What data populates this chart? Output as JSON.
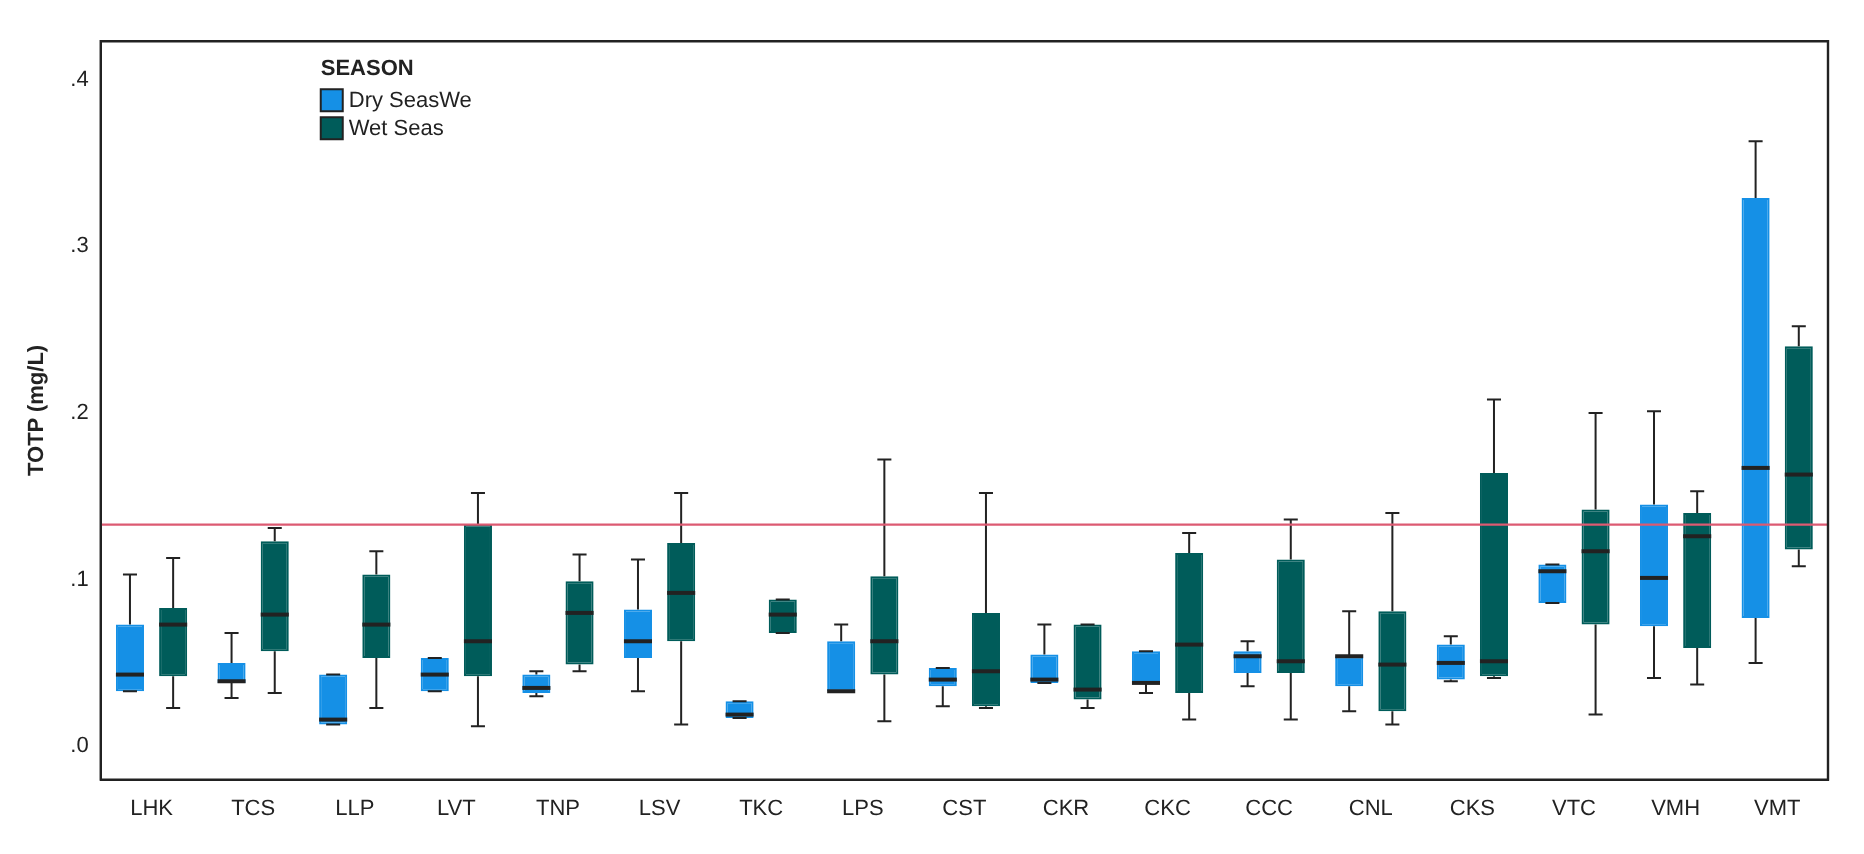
{
  "chart_data": {
    "type": "box",
    "ylabel": "TOTP (mg/L)",
    "legend_title": "SEASON",
    "legend": "top left",
    "grid": false,
    "categories": [
      "LHK",
      "TCS",
      "LLP",
      "LVT",
      "TNP",
      "LSV",
      "TKC",
      "LPS",
      "CST",
      "CKR",
      "CKC",
      "CCC",
      "CNL",
      "CKS",
      "VTC",
      "VMH",
      "VMT"
    ],
    "ylim": [
      -0.02,
      0.423
    ],
    "yticks": [
      {
        "value": 0,
        "label": ".0"
      },
      {
        "value": 0.1,
        "label": ".1"
      },
      {
        "value": 0.2,
        "label": ".2"
      },
      {
        "value": 0.3,
        "label": ".3"
      },
      {
        "value": 0.4,
        "label": ".4"
      }
    ],
    "ref_lines": [
      {
        "axis": "y",
        "value": 0.133,
        "color": "#dc5a72"
      }
    ],
    "series": [
      {
        "name": "Dry SeasWe",
        "color": "#1590e6",
        "boxes": [
          {
            "low": 0.033,
            "q1": 0.033,
            "median": 0.043,
            "q3": 0.073,
            "high": 0.103
          },
          {
            "low": 0.029,
            "q1": 0.038,
            "median": 0.039,
            "q3": 0.05,
            "high": 0.068
          },
          {
            "low": 0.013,
            "q1": 0.013,
            "median": 0.016,
            "q3": 0.043,
            "high": 0.043
          },
          {
            "low": 0.033,
            "q1": 0.033,
            "median": 0.043,
            "q3": 0.053,
            "high": 0.053
          },
          {
            "low": 0.03,
            "q1": 0.032,
            "median": 0.035,
            "q3": 0.043,
            "high": 0.045
          },
          {
            "low": 0.033,
            "q1": 0.053,
            "median": 0.063,
            "q3": 0.082,
            "high": 0.112
          },
          {
            "low": 0.017,
            "q1": 0.017,
            "median": 0.019,
            "q3": 0.027,
            "high": 0.027
          },
          {
            "low": 0.033,
            "q1": 0.033,
            "median": 0.033,
            "q3": 0.063,
            "high": 0.073
          },
          {
            "low": 0.024,
            "q1": 0.036,
            "median": 0.04,
            "q3": 0.047,
            "high": 0.047
          },
          {
            "low": 0.038,
            "q1": 0.038,
            "median": 0.04,
            "q3": 0.055,
            "high": 0.073
          },
          {
            "low": 0.032,
            "q1": 0.038,
            "median": 0.038,
            "q3": 0.057,
            "high": 0.057
          },
          {
            "low": 0.036,
            "q1": 0.044,
            "median": 0.054,
            "q3": 0.057,
            "high": 0.063
          },
          {
            "low": 0.021,
            "q1": 0.036,
            "median": 0.054,
            "q3": 0.054,
            "high": 0.081
          },
          {
            "low": 0.039,
            "q1": 0.04,
            "median": 0.05,
            "q3": 0.061,
            "high": 0.066
          },
          {
            "low": 0.086,
            "q1": 0.086,
            "median": 0.105,
            "q3": 0.109,
            "high": 0.109
          },
          {
            "low": 0.041,
            "q1": 0.072,
            "median": 0.101,
            "q3": 0.145,
            "high": 0.201
          },
          {
            "low": 0.05,
            "q1": 0.077,
            "median": 0.167,
            "q3": 0.329,
            "high": 0.363
          }
        ]
      },
      {
        "name": "Wet Seas",
        "color": "#005c5a",
        "boxes": [
          {
            "low": 0.023,
            "q1": 0.042,
            "median": 0.073,
            "q3": 0.083,
            "high": 0.113
          },
          {
            "low": 0.032,
            "q1": 0.057,
            "median": 0.079,
            "q3": 0.123,
            "high": 0.131
          },
          {
            "low": 0.023,
            "q1": 0.053,
            "median": 0.073,
            "q3": 0.103,
            "high": 0.117
          },
          {
            "low": 0.012,
            "q1": 0.042,
            "median": 0.063,
            "q3": 0.133,
            "high": 0.152
          },
          {
            "low": 0.045,
            "q1": 0.049,
            "median": 0.08,
            "q3": 0.099,
            "high": 0.115
          },
          {
            "low": 0.013,
            "q1": 0.063,
            "median": 0.092,
            "q3": 0.122,
            "high": 0.152
          },
          {
            "low": 0.068,
            "q1": 0.068,
            "median": 0.079,
            "q3": 0.088,
            "high": 0.088
          },
          {
            "low": 0.015,
            "q1": 0.043,
            "median": 0.063,
            "q3": 0.102,
            "high": 0.172
          },
          {
            "low": 0.023,
            "q1": 0.024,
            "median": 0.045,
            "q3": 0.08,
            "high": 0.152
          },
          {
            "low": 0.023,
            "q1": 0.028,
            "median": 0.034,
            "q3": 0.073,
            "high": 0.073
          },
          {
            "low": 0.016,
            "q1": 0.032,
            "median": 0.061,
            "q3": 0.116,
            "high": 0.128
          },
          {
            "low": 0.016,
            "q1": 0.044,
            "median": 0.051,
            "q3": 0.112,
            "high": 0.136
          },
          {
            "low": 0.013,
            "q1": 0.021,
            "median": 0.049,
            "q3": 0.081,
            "high": 0.14
          },
          {
            "low": 0.041,
            "q1": 0.042,
            "median": 0.051,
            "q3": 0.164,
            "high": 0.208
          },
          {
            "low": 0.019,
            "q1": 0.073,
            "median": 0.117,
            "q3": 0.142,
            "high": 0.2
          },
          {
            "low": 0.037,
            "q1": 0.059,
            "median": 0.126,
            "q3": 0.14,
            "high": 0.153
          },
          {
            "low": 0.108,
            "q1": 0.118,
            "median": 0.163,
            "q3": 0.24,
            "high": 0.252
          }
        ]
      }
    ]
  }
}
